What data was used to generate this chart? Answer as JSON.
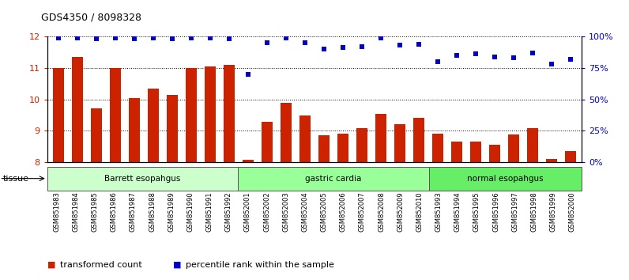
{
  "title": "GDS4350 / 8098328",
  "samples": [
    "GSM851983",
    "GSM851984",
    "GSM851985",
    "GSM851986",
    "GSM851987",
    "GSM851988",
    "GSM851989",
    "GSM851990",
    "GSM851991",
    "GSM851992",
    "GSM852001",
    "GSM852002",
    "GSM852003",
    "GSM852004",
    "GSM852005",
    "GSM852006",
    "GSM852007",
    "GSM852008",
    "GSM852009",
    "GSM852010",
    "GSM851993",
    "GSM851994",
    "GSM851995",
    "GSM851996",
    "GSM851997",
    "GSM851998",
    "GSM851999",
    "GSM852000"
  ],
  "bar_values": [
    11.0,
    11.35,
    9.72,
    11.0,
    10.05,
    10.35,
    10.15,
    11.0,
    11.05,
    11.1,
    8.08,
    9.3,
    9.9,
    9.5,
    8.85,
    8.9,
    9.1,
    9.55,
    9.22,
    9.42,
    8.9,
    8.65,
    8.65,
    8.55,
    8.88,
    9.1,
    8.1,
    8.35
  ],
  "percentile_values": [
    99,
    99,
    98,
    99,
    98,
    99,
    98,
    99,
    99,
    98,
    70,
    95,
    99,
    95,
    90,
    91,
    92,
    99,
    93,
    94,
    80,
    85,
    86,
    84,
    83,
    87,
    78,
    82
  ],
  "groups": [
    {
      "label": "Barrett esopahgus",
      "start": 0,
      "end": 10,
      "color": "#ccffcc"
    },
    {
      "label": "gastric cardia",
      "start": 10,
      "end": 20,
      "color": "#99ff99"
    },
    {
      "label": "normal esopahgus",
      "start": 20,
      "end": 28,
      "color": "#66ee66"
    }
  ],
  "ylim_left": [
    8,
    12
  ],
  "ylim_right": [
    0,
    100
  ],
  "yticks_left": [
    8,
    9,
    10,
    11,
    12
  ],
  "yticks_right": [
    0,
    25,
    50,
    75,
    100
  ],
  "bar_color": "#cc2200",
  "dot_color": "#0000cc",
  "background_color": "#ffffff",
  "grid_color": "#000000",
  "tissue_label": "tissue",
  "legend_items": [
    {
      "color": "#cc2200",
      "label": "transformed count"
    },
    {
      "color": "#0000cc",
      "label": "percentile rank within the sample"
    }
  ]
}
